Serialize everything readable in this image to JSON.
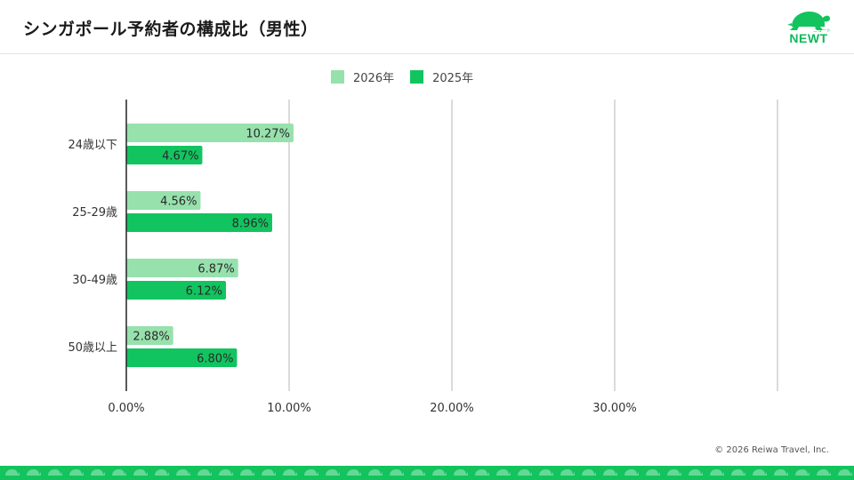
{
  "header": {
    "title": "シンガポール予約者の構成比（男性）",
    "logo_text": "NEWT",
    "logo_sub": "ニュート"
  },
  "footer": {
    "copyright": "© 2026 Reiwa Travel, Inc."
  },
  "colors": {
    "series_2026": "#97e1ad",
    "series_2025": "#12c45f",
    "brand": "#13c35e",
    "grid": "#cfcfcf",
    "axis": "#222222"
  },
  "chart_data": {
    "type": "bar",
    "orientation": "horizontal",
    "categories": [
      "24歳以下",
      "25-29歳",
      "30-49歳",
      "50歳以上"
    ],
    "series": [
      {
        "name": "2026年",
        "values": [
          10.27,
          4.56,
          6.87,
          2.88
        ]
      },
      {
        "name": "2025年",
        "values": [
          4.67,
          8.96,
          6.12,
          6.8
        ]
      }
    ],
    "data_labels": [
      [
        "10.27%",
        "4.56%",
        "6.87%",
        "2.88%"
      ],
      [
        "4.67%",
        "8.96%",
        "6.12%",
        "6.80%"
      ]
    ],
    "xticks": [
      "0.00%",
      "10.00%",
      "20.00%",
      "30.00%"
    ],
    "xlim": [
      0,
      40
    ],
    "grid": true,
    "legend_position": "top"
  }
}
